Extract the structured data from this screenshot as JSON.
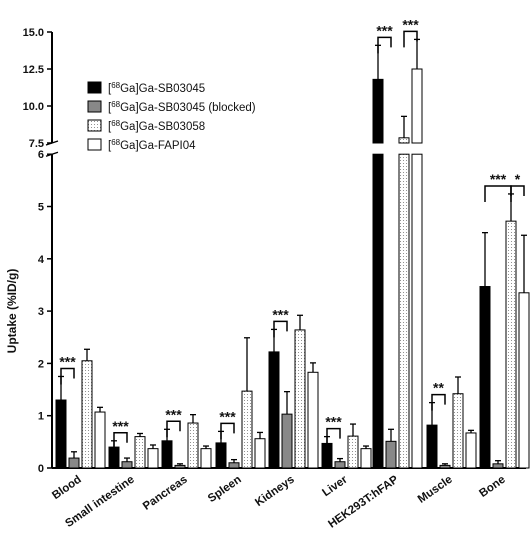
{
  "chart_data": {
    "type": "bar",
    "ylabel": "Uptake (%ID/g)",
    "y_axis_break": [
      6,
      7.5
    ],
    "ylim": [
      0,
      15
    ],
    "yticks_lower": [
      "0",
      "1",
      "2",
      "3",
      "4",
      "5",
      "6"
    ],
    "yticks_upper": [
      "7.5",
      "10.0",
      "12.5",
      "15.0"
    ],
    "categories": [
      "Blood",
      "Small intestine",
      "Pancreas",
      "Spleen",
      "Kidneys",
      "Liver",
      "HEK293T:hFAP",
      "Muscle",
      "Bone"
    ],
    "series": [
      {
        "sup": "68",
        "name": "Ga]Ga-SB03045",
        "color": "#000000",
        "pattern": "solid",
        "values": [
          1.3,
          0.4,
          0.52,
          0.48,
          2.22,
          0.47,
          11.8,
          0.82,
          3.47
        ],
        "errors": [
          0.45,
          0.12,
          0.22,
          0.22,
          0.43,
          0.13,
          2.3,
          0.43,
          1.03
        ]
      },
      {
        "sup": "68",
        "name": "Ga]Ga-SB03045 (blocked)",
        "color": "#888888",
        "pattern": "solid",
        "values": [
          0.19,
          0.12,
          0.05,
          0.1,
          1.03,
          0.12,
          0.51,
          0.05,
          0.08
        ],
        "errors": [
          0.12,
          0.07,
          0.03,
          0.06,
          0.43,
          0.06,
          0.23,
          0.03,
          0.06
        ]
      },
      {
        "sup": "68",
        "name": "Ga]Ga-SB03058",
        "color": "#ffffff",
        "pattern": "dots",
        "values": [
          2.05,
          0.6,
          0.86,
          1.47,
          2.64,
          0.61,
          7.85,
          1.42,
          4.72
        ],
        "errors": [
          0.22,
          0.06,
          0.16,
          1.02,
          0.28,
          0.23,
          1.45,
          0.32,
          0.52
        ]
      },
      {
        "sup": "68",
        "name": "Ga]Ga-FAPI04",
        "color": "#ffffff",
        "pattern": "plain",
        "values": [
          1.07,
          0.37,
          0.37,
          0.56,
          1.83,
          0.37,
          12.5,
          0.67,
          3.35
        ],
        "errors": [
          0.09,
          0.07,
          0.05,
          0.12,
          0.18,
          0.05,
          2.0,
          0.05,
          1.1
        ]
      }
    ],
    "significance": [
      {
        "category": "Blood",
        "from": 0,
        "to": 1,
        "label": "***"
      },
      {
        "category": "Small intestine",
        "from": 0,
        "to": 1,
        "label": "***"
      },
      {
        "category": "Pancreas",
        "from": 0,
        "to": 1,
        "label": "***"
      },
      {
        "category": "Spleen",
        "from": 0,
        "to": 1,
        "label": "***"
      },
      {
        "category": "Kidneys",
        "from": 0,
        "to": 1,
        "label": "***"
      },
      {
        "category": "Liver",
        "from": 0,
        "to": 1,
        "label": "***"
      },
      {
        "category": "HEK293T:hFAP",
        "from": 0,
        "to": 1,
        "label": "***"
      },
      {
        "category": "HEK293T:hFAP",
        "from": 2,
        "to": 3,
        "label": "***"
      },
      {
        "category": "Muscle",
        "from": 0,
        "to": 1,
        "label": "**"
      },
      {
        "category": "Bone",
        "from": 0,
        "to": 2,
        "label": "***"
      },
      {
        "category": "Bone",
        "from": 2,
        "to": 3,
        "label": "*"
      }
    ],
    "legend_position": "top-left"
  }
}
